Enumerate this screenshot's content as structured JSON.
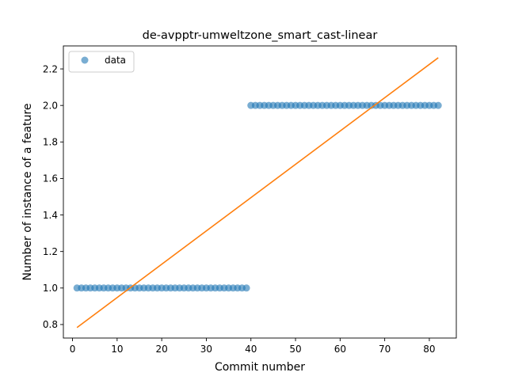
{
  "chart_data": {
    "type": "scatter",
    "title": "de-avpptr-umweltzone_smart_cast-linear",
    "xlabel": "Commit number",
    "ylabel": "Number of instance of a feature",
    "xlim": [
      -2.05,
      86.05
    ],
    "ylim": [
      0.726,
      2.326
    ],
    "xticks": [
      0,
      10,
      20,
      30,
      40,
      50,
      60,
      70,
      80
    ],
    "yticks": [
      0.8,
      1.0,
      1.2,
      1.4,
      1.6,
      1.8,
      2.0,
      2.2
    ],
    "ytick_labels": [
      "0.8",
      "1.0",
      "1.2",
      "1.4",
      "1.6",
      "1.8",
      "2.0",
      "2.2"
    ],
    "legend": {
      "position": "top-left",
      "entries": [
        "data"
      ]
    },
    "grid": false,
    "series": [
      {
        "name": "data",
        "kind": "scatter",
        "color": "#1f77b4",
        "points": [
          [
            1,
            1
          ],
          [
            2,
            1
          ],
          [
            3,
            1
          ],
          [
            4,
            1
          ],
          [
            5,
            1
          ],
          [
            6,
            1
          ],
          [
            7,
            1
          ],
          [
            8,
            1
          ],
          [
            9,
            1
          ],
          [
            10,
            1
          ],
          [
            11,
            1
          ],
          [
            12,
            1
          ],
          [
            13,
            1
          ],
          [
            14,
            1
          ],
          [
            15,
            1
          ],
          [
            16,
            1
          ],
          [
            17,
            1
          ],
          [
            18,
            1
          ],
          [
            19,
            1
          ],
          [
            20,
            1
          ],
          [
            21,
            1
          ],
          [
            22,
            1
          ],
          [
            23,
            1
          ],
          [
            24,
            1
          ],
          [
            25,
            1
          ],
          [
            26,
            1
          ],
          [
            27,
            1
          ],
          [
            28,
            1
          ],
          [
            29,
            1
          ],
          [
            30,
            1
          ],
          [
            31,
            1
          ],
          [
            32,
            1
          ],
          [
            33,
            1
          ],
          [
            34,
            1
          ],
          [
            35,
            1
          ],
          [
            36,
            1
          ],
          [
            37,
            1
          ],
          [
            38,
            1
          ],
          [
            39,
            1
          ],
          [
            40,
            2
          ],
          [
            41,
            2
          ],
          [
            42,
            2
          ],
          [
            43,
            2
          ],
          [
            44,
            2
          ],
          [
            45,
            2
          ],
          [
            46,
            2
          ],
          [
            47,
            2
          ],
          [
            48,
            2
          ],
          [
            49,
            2
          ],
          [
            50,
            2
          ],
          [
            51,
            2
          ],
          [
            52,
            2
          ],
          [
            53,
            2
          ],
          [
            54,
            2
          ],
          [
            55,
            2
          ],
          [
            56,
            2
          ],
          [
            57,
            2
          ],
          [
            58,
            2
          ],
          [
            59,
            2
          ],
          [
            60,
            2
          ],
          [
            61,
            2
          ],
          [
            62,
            2
          ],
          [
            63,
            2
          ],
          [
            64,
            2
          ],
          [
            65,
            2
          ],
          [
            66,
            2
          ],
          [
            67,
            2
          ],
          [
            68,
            2
          ],
          [
            69,
            2
          ],
          [
            70,
            2
          ],
          [
            71,
            2
          ],
          [
            72,
            2
          ],
          [
            73,
            2
          ],
          [
            74,
            2
          ],
          [
            75,
            2
          ],
          [
            76,
            2
          ],
          [
            77,
            2
          ],
          [
            78,
            2
          ],
          [
            79,
            2
          ],
          [
            80,
            2
          ],
          [
            81,
            2
          ],
          [
            82,
            2
          ]
        ]
      },
      {
        "kind": "line",
        "color": "#ff7f0e",
        "points": [
          [
            1,
            0.7835
          ],
          [
            82,
            2.2612
          ]
        ]
      }
    ]
  }
}
